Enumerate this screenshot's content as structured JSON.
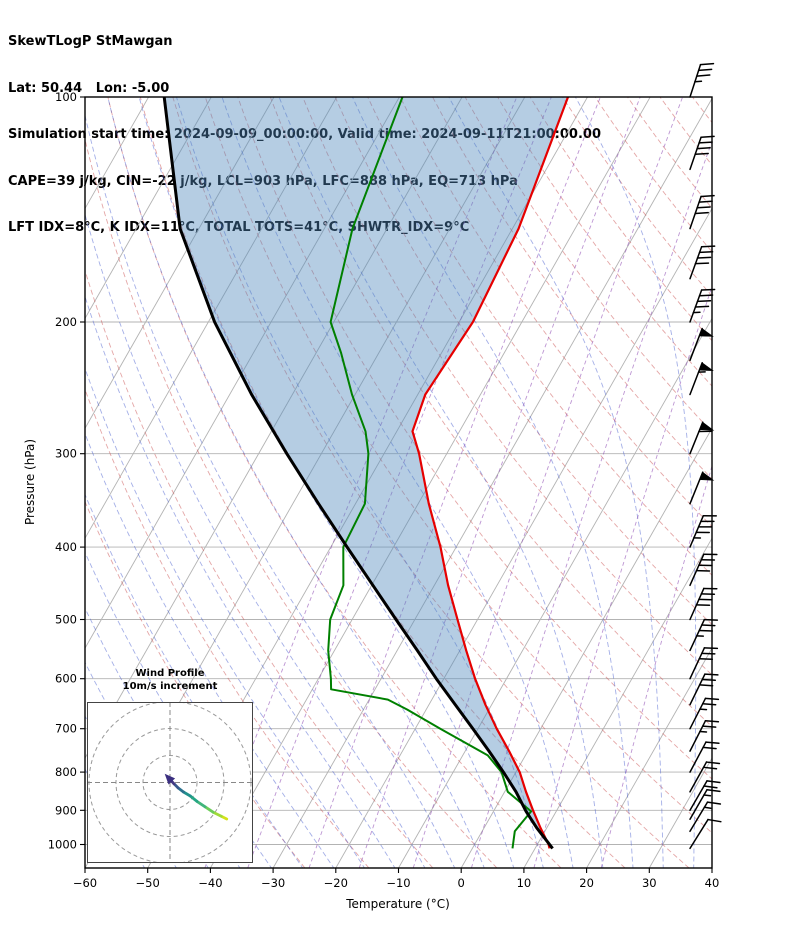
{
  "header": {
    "line1": "SkewTLogP StMawgan",
    "line2": "Lat: 50.44   Lon: -5.00",
    "line3": "Simulation start time: 2024-09-09_00:00:00, Valid time: 2024-09-11T21:00:00.00",
    "line4": "CAPE=39 j/kg, CIN=-22 j/kg, LCL=903 hPa, LFC=888 hPa, EQ=713 hPa",
    "line5": "LFT IDX=8°C, K IDX=11°C, TOTAL TOTS=41°C, SHWTR_IDX=9°C"
  },
  "axes": {
    "x_label": "Temperature (°C)",
    "y_label": "Pressure (hPa)",
    "x_ticks": [
      "−60",
      "−50",
      "−40",
      "−30",
      "−20",
      "−10",
      "0",
      "10",
      "20",
      "30",
      "40"
    ],
    "y_ticks": [
      "100",
      "200",
      "300",
      "400",
      "500",
      "600",
      "700",
      "800",
      "900",
      "1000"
    ]
  },
  "inset": {
    "title1": "Wind Profile",
    "title2": "10m/s increment"
  },
  "chart_data": {
    "type": "skewt-logp",
    "title": "SkewTLogP StMawgan",
    "station": {
      "name": "StMawgan",
      "lat": 50.44,
      "lon": -5.0
    },
    "valid_time": "2024-09-11T21:00:00.00",
    "sim_start_time": "2024-09-09_00:00:00",
    "indices": {
      "cape_j_kg": 39,
      "cin_j_kg": -22,
      "lcl_hpa": 903,
      "lfc_hpa": 888,
      "eq_hpa": 713,
      "lifted_index_c": 8,
      "k_index_c": 11,
      "total_totals_c": 41,
      "showalter_index_c": 9
    },
    "x_axis": {
      "label": "Temperature (°C)",
      "min": -60,
      "max": 40,
      "ticks": [
        -60,
        -50,
        -40,
        -30,
        -20,
        -10,
        0,
        10,
        20,
        30,
        40
      ]
    },
    "y_axis": {
      "label": "Pressure (hPa)",
      "min": 100,
      "max": 1075,
      "scale": "log",
      "ticks": [
        100,
        200,
        300,
        400,
        500,
        600,
        700,
        800,
        900,
        1000
      ]
    },
    "skew_c_per_decade": 68,
    "series": {
      "temperature": {
        "name": "Temperature",
        "points": [
          [
            1012,
            12.3
          ],
          [
            1000,
            11.8
          ],
          [
            950,
            9.0
          ],
          [
            900,
            6.2
          ],
          [
            850,
            3.4
          ],
          [
            800,
            0.6
          ],
          [
            750,
            -3.0
          ],
          [
            700,
            -7.0
          ],
          [
            650,
            -11.0
          ],
          [
            600,
            -15.0
          ],
          [
            550,
            -19.0
          ],
          [
            500,
            -23.2
          ],
          [
            450,
            -27.8
          ],
          [
            400,
            -32.5
          ],
          [
            350,
            -38.3
          ],
          [
            300,
            -44.4
          ],
          [
            280,
            -47.5
          ],
          [
            250,
            -48.8
          ],
          [
            200,
            -47.8
          ],
          [
            150,
            -49.0
          ],
          [
            100,
            -53.1
          ]
        ]
      },
      "dewpoint": {
        "name": "Dewpoint",
        "points": [
          [
            1012,
            6.4
          ],
          [
            960,
            5.2
          ],
          [
            903,
            6.0
          ],
          [
            850,
            0.5
          ],
          [
            800,
            -2.3
          ],
          [
            760,
            -6.0
          ],
          [
            700,
            -16.0
          ],
          [
            660,
            -23.0
          ],
          [
            640,
            -27.0
          ],
          [
            620,
            -37.0
          ],
          [
            600,
            -38.0
          ],
          [
            550,
            -41.0
          ],
          [
            500,
            -43.5
          ],
          [
            450,
            -44.5
          ],
          [
            400,
            -48.0
          ],
          [
            350,
            -48.5
          ],
          [
            300,
            -52.5
          ],
          [
            280,
            -55.0
          ],
          [
            250,
            -60.5
          ],
          [
            220,
            -66.0
          ],
          [
            200,
            -70.5
          ],
          [
            150,
            -75.5
          ],
          [
            100,
            -79.5
          ]
        ]
      },
      "parcel": {
        "name": "Parcel path",
        "points": [
          [
            1012,
            12.8
          ],
          [
            950,
            8.4
          ],
          [
            903,
            5.2
          ],
          [
            850,
            1.8
          ],
          [
            800,
            -2.0
          ],
          [
            750,
            -6.2
          ],
          [
            700,
            -10.8
          ],
          [
            650,
            -15.8
          ],
          [
            600,
            -21.2
          ],
          [
            550,
            -26.8
          ],
          [
            500,
            -33.0
          ],
          [
            450,
            -39.8
          ],
          [
            400,
            -47.4
          ],
          [
            350,
            -55.9
          ],
          [
            300,
            -65.5
          ],
          [
            250,
            -76.5
          ],
          [
            200,
            -89.0
          ],
          [
            150,
            -103.0
          ],
          [
            100,
            -117.5
          ]
        ]
      }
    },
    "background": {
      "isotherms_c": {
        "from": -120,
        "to": 40,
        "step": 10
      },
      "dry_adiabats_c": {
        "from": -30,
        "to": 200,
        "step": 10
      },
      "moist_adiabats_c": {
        "from": -55,
        "to": 40,
        "step": 5
      },
      "mixing_ratio_g_kg": [
        0.1,
        0.2,
        0.5,
        1,
        2,
        4,
        8,
        16
      ]
    },
    "colors": {
      "temperature": "#e60000",
      "dewpoint": "#008000",
      "parcel": "#000000",
      "cape_fill": "#4f87bd",
      "cape_fill_opacity": 0.42,
      "isotherm": "#b3b3b3",
      "isobar": "#b3b3b3",
      "dry_adiabat": "#cd5c5c",
      "moist_adiabat": "#4a5fd0",
      "mixing_ratio": "#9150b5",
      "barb": "#000000"
    },
    "wind_barbs": [
      [
        1012,
        12,
        32
      ],
      [
        960,
        15,
        31
      ],
      [
        925,
        15,
        30
      ],
      [
        900,
        18,
        30
      ],
      [
        850,
        20,
        29
      ],
      [
        800,
        22,
        28
      ],
      [
        750,
        25,
        27
      ],
      [
        700,
        25,
        27
      ],
      [
        650,
        30,
        26
      ],
      [
        600,
        32,
        25
      ],
      [
        550,
        35,
        25
      ],
      [
        500,
        38,
        24
      ],
      [
        450,
        42,
        24
      ],
      [
        400,
        45,
        23
      ],
      [
        350,
        52,
        22
      ],
      [
        300,
        58,
        22
      ],
      [
        250,
        55,
        21
      ],
      [
        225,
        48,
        21
      ],
      [
        200,
        45,
        20
      ],
      [
        175,
        42,
        20
      ],
      [
        150,
        40,
        19
      ],
      [
        125,
        38,
        19
      ],
      [
        100,
        35,
        18
      ]
    ],
    "hodograph": {
      "title": "Wind Profile",
      "subtitle": "10m/s increment",
      "rings_m_s": [
        10,
        20,
        30
      ],
      "trace_u_v_m_s": [
        [
          21,
          -13.5
        ],
        [
          19,
          -12.5
        ],
        [
          16,
          -11
        ],
        [
          13,
          -9
        ],
        [
          10,
          -7
        ],
        [
          7.5,
          -5
        ],
        [
          5,
          -3.5
        ],
        [
          3,
          -2
        ],
        [
          1.5,
          -0.5
        ],
        [
          0.3,
          0.8
        ]
      ],
      "segment_colors": [
        "#d4e21a",
        "#a0da39",
        "#6dcd59",
        "#41b57c",
        "#25a584",
        "#21918c",
        "#2c728e",
        "#38588c",
        "#443983"
      ],
      "arrow_color": "#3b2f80"
    }
  }
}
